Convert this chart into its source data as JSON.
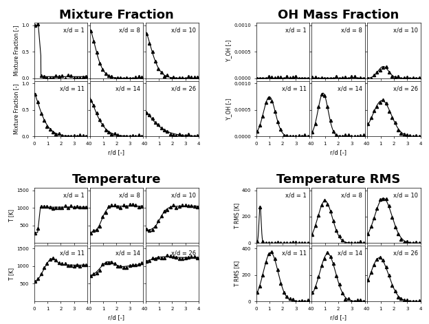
{
  "titles": [
    "Mixture Fraction",
    "OH Mass Fraction",
    "Temperature",
    "Temperature RMS"
  ],
  "xd_labels_row1": [
    "x/d = 1",
    "x/d = 8",
    "x/d = 10"
  ],
  "xd_labels_row2": [
    "x/d = 11",
    "x/d = 14",
    "x/d = 26"
  ],
  "mf_ylabel": "Mixture Fraction [-]",
  "oh_ylabel": "Y_OH [-]",
  "temp_ylabel": "T [K]",
  "trms_ylabel": "T RMS [K]",
  "xlabel": "r/d [-]",
  "fontsize_title": 13,
  "fontsize_label": 7,
  "fontsize_tick": 6,
  "fontsize_sublabel": 7
}
